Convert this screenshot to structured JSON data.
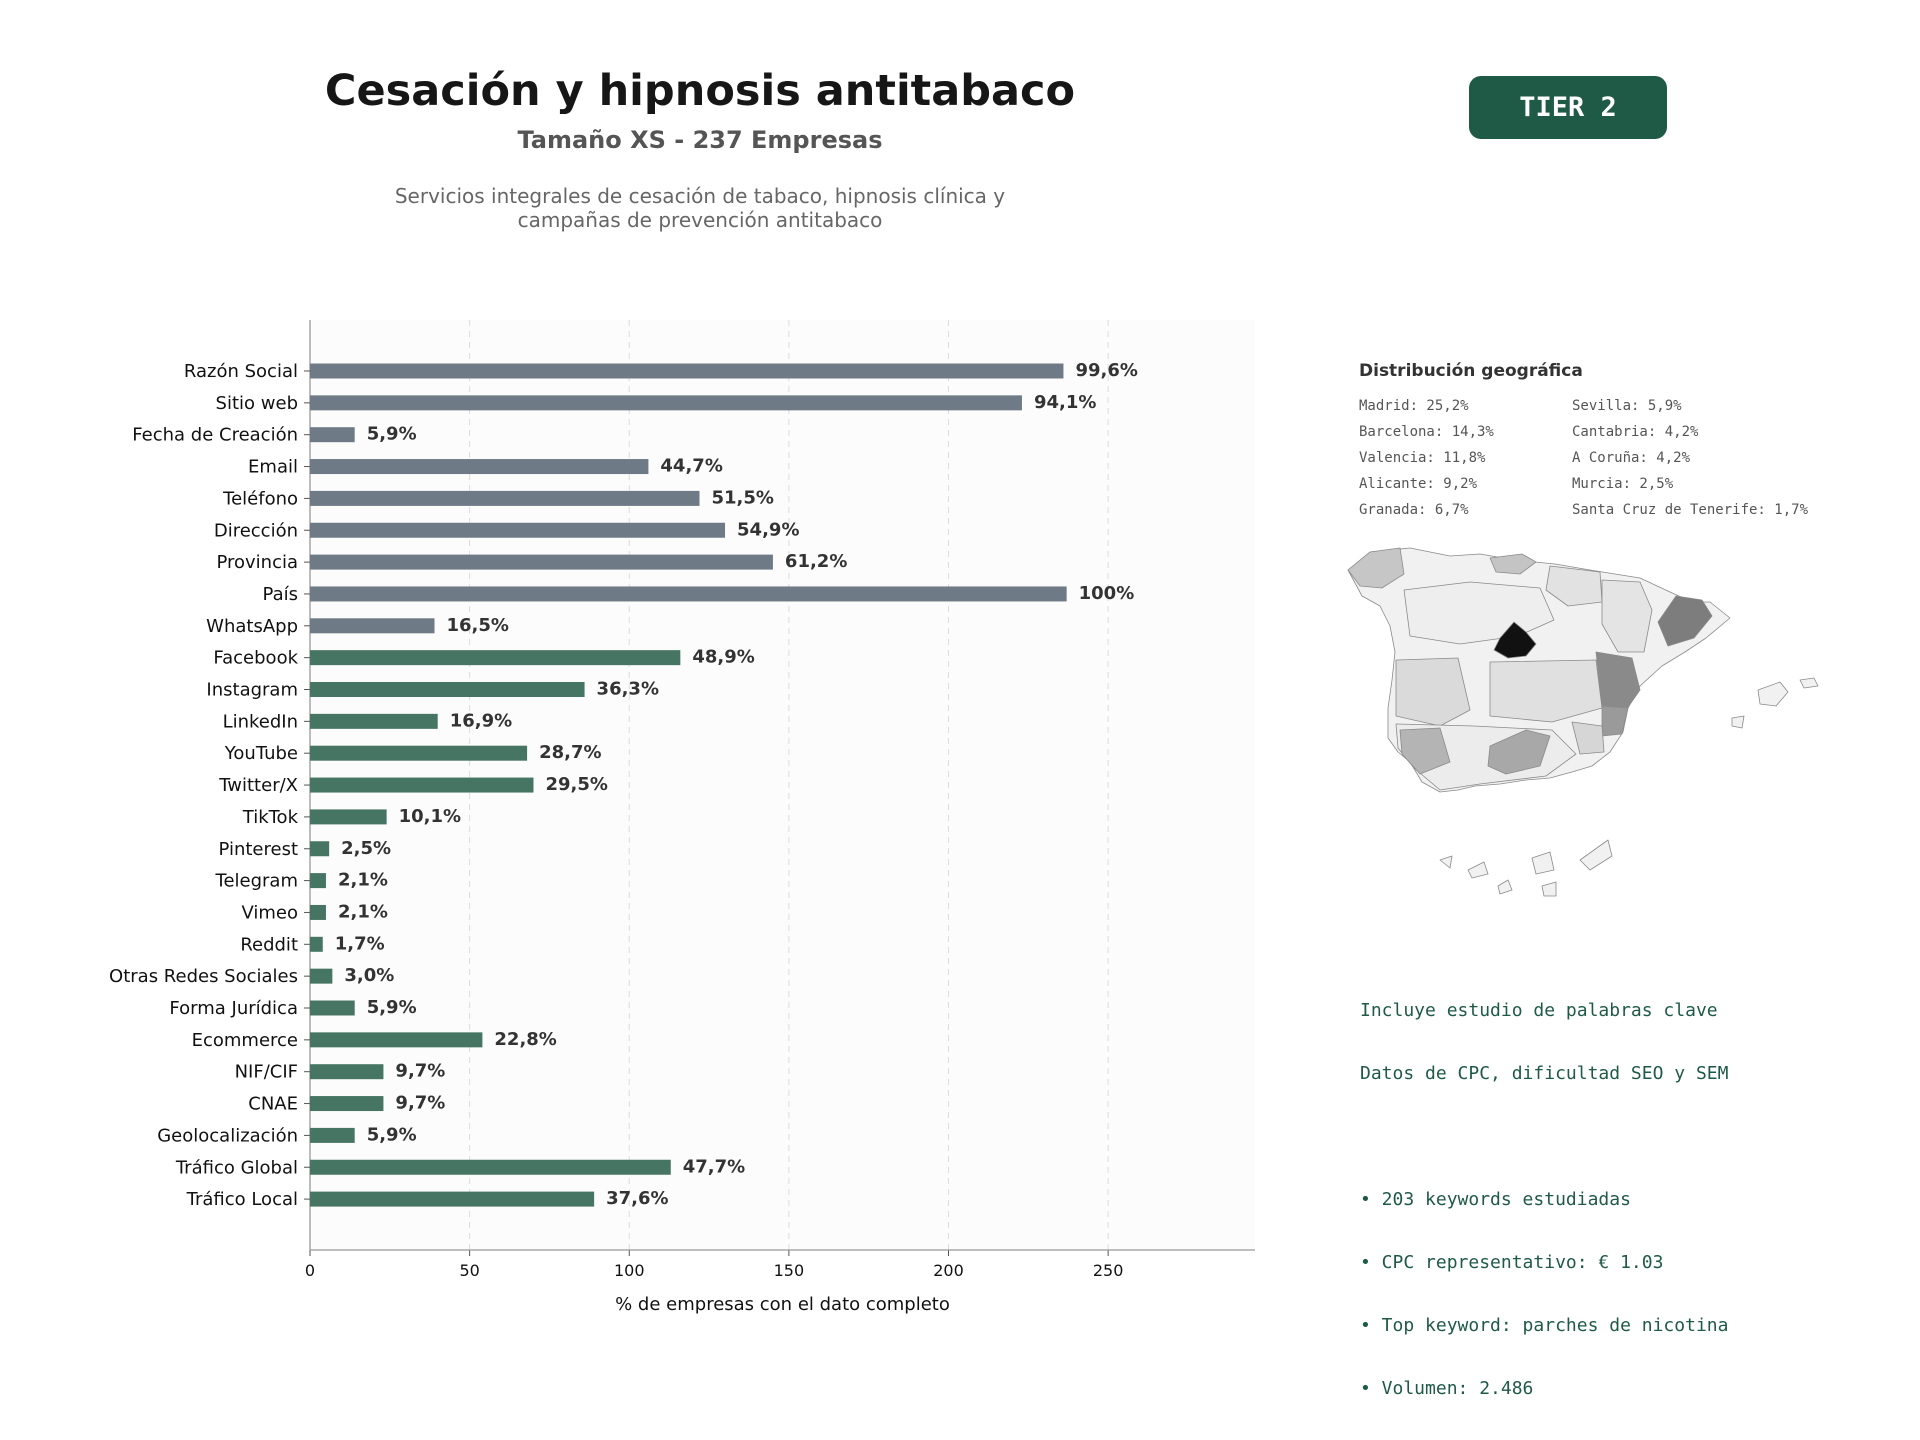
{
  "header": {
    "title": "Cesación y hipnosis antitabaco",
    "subtitle": "Tamaño XS - 237 Empresas",
    "description_line1": "Servicios integrales de cesación de tabaco, hipnosis clínica y",
    "description_line2": "campañas de prevención antitabaco",
    "tier_label": "TIER 2"
  },
  "colors": {
    "gray_bar": "#6e7a85",
    "green_bar": "#477564",
    "badge": "#1e5a45",
    "text_green": "#1e5a45"
  },
  "chart_data": {
    "type": "bar",
    "orientation": "horizontal",
    "xlabel": "% de empresas con el dato completo",
    "xlim": [
      0,
      296
    ],
    "xticks": [
      0,
      50,
      100,
      150,
      200,
      250
    ],
    "grid": true,
    "categories": [
      "Razón Social",
      "Sitio web",
      "Fecha de Creación",
      "Email",
      "Teléfono",
      "Dirección",
      "Provincia",
      "País",
      "WhatsApp",
      "Facebook",
      "Instagram",
      "LinkedIn",
      "YouTube",
      "Twitter/X",
      "TikTok",
      "Pinterest",
      "Telegram",
      "Vimeo",
      "Reddit",
      "Otras Redes Sociales",
      "Forma Jurídica",
      "Ecommerce",
      "NIF/CIF",
      "CNAE",
      "Geolocalización",
      "Tráfico Global",
      "Tráfico Local"
    ],
    "values": [
      236,
      223,
      14,
      106,
      122,
      130,
      145,
      237,
      39,
      116,
      86,
      40,
      68,
      70,
      24,
      6,
      5,
      5,
      4,
      7,
      14,
      54,
      23,
      23,
      14,
      113,
      89
    ],
    "labels": [
      "99,6%",
      "94,1%",
      "5,9%",
      "44,7%",
      "51,5%",
      "54,9%",
      "61,2%",
      "100%",
      "16,5%",
      "48,9%",
      "36,3%",
      "16,9%",
      "28,7%",
      "29,5%",
      "10,1%",
      "2,5%",
      "2,1%",
      "2,1%",
      "1,7%",
      "3,0%",
      "5,9%",
      "22,8%",
      "9,7%",
      "9,7%",
      "5,9%",
      "47,7%",
      "37,6%"
    ],
    "groups": [
      "gray",
      "gray",
      "gray",
      "gray",
      "gray",
      "gray",
      "gray",
      "gray",
      "gray",
      "green",
      "green",
      "green",
      "green",
      "green",
      "green",
      "green",
      "green",
      "green",
      "green",
      "green",
      "green",
      "green",
      "green",
      "green",
      "green",
      "green",
      "green"
    ]
  },
  "geo": {
    "title": "Distribución geográfica",
    "items": [
      "Madrid: 25,2%",
      "Barcelona: 14,3%",
      "Valencia: 11,8%",
      "Alicante: 9,2%",
      "Granada: 6,7%",
      "Sevilla: 5,9%",
      "Cantabria: 4,2%",
      "A Coruña: 4,2%",
      "Murcia: 2,5%",
      "Santa Cruz de Tenerife: 1,7%"
    ]
  },
  "keywords": {
    "line1": "Incluye estudio de palabras clave",
    "line2": "Datos de CPC, dificultad SEO y SEM",
    "bullet1": "• 203 keywords estudiadas",
    "bullet2": "• CPC representativo: € 1.03",
    "bullet3": "• Top keyword: parches de nicotina",
    "bullet4": "• Volumen: 2.486"
  }
}
